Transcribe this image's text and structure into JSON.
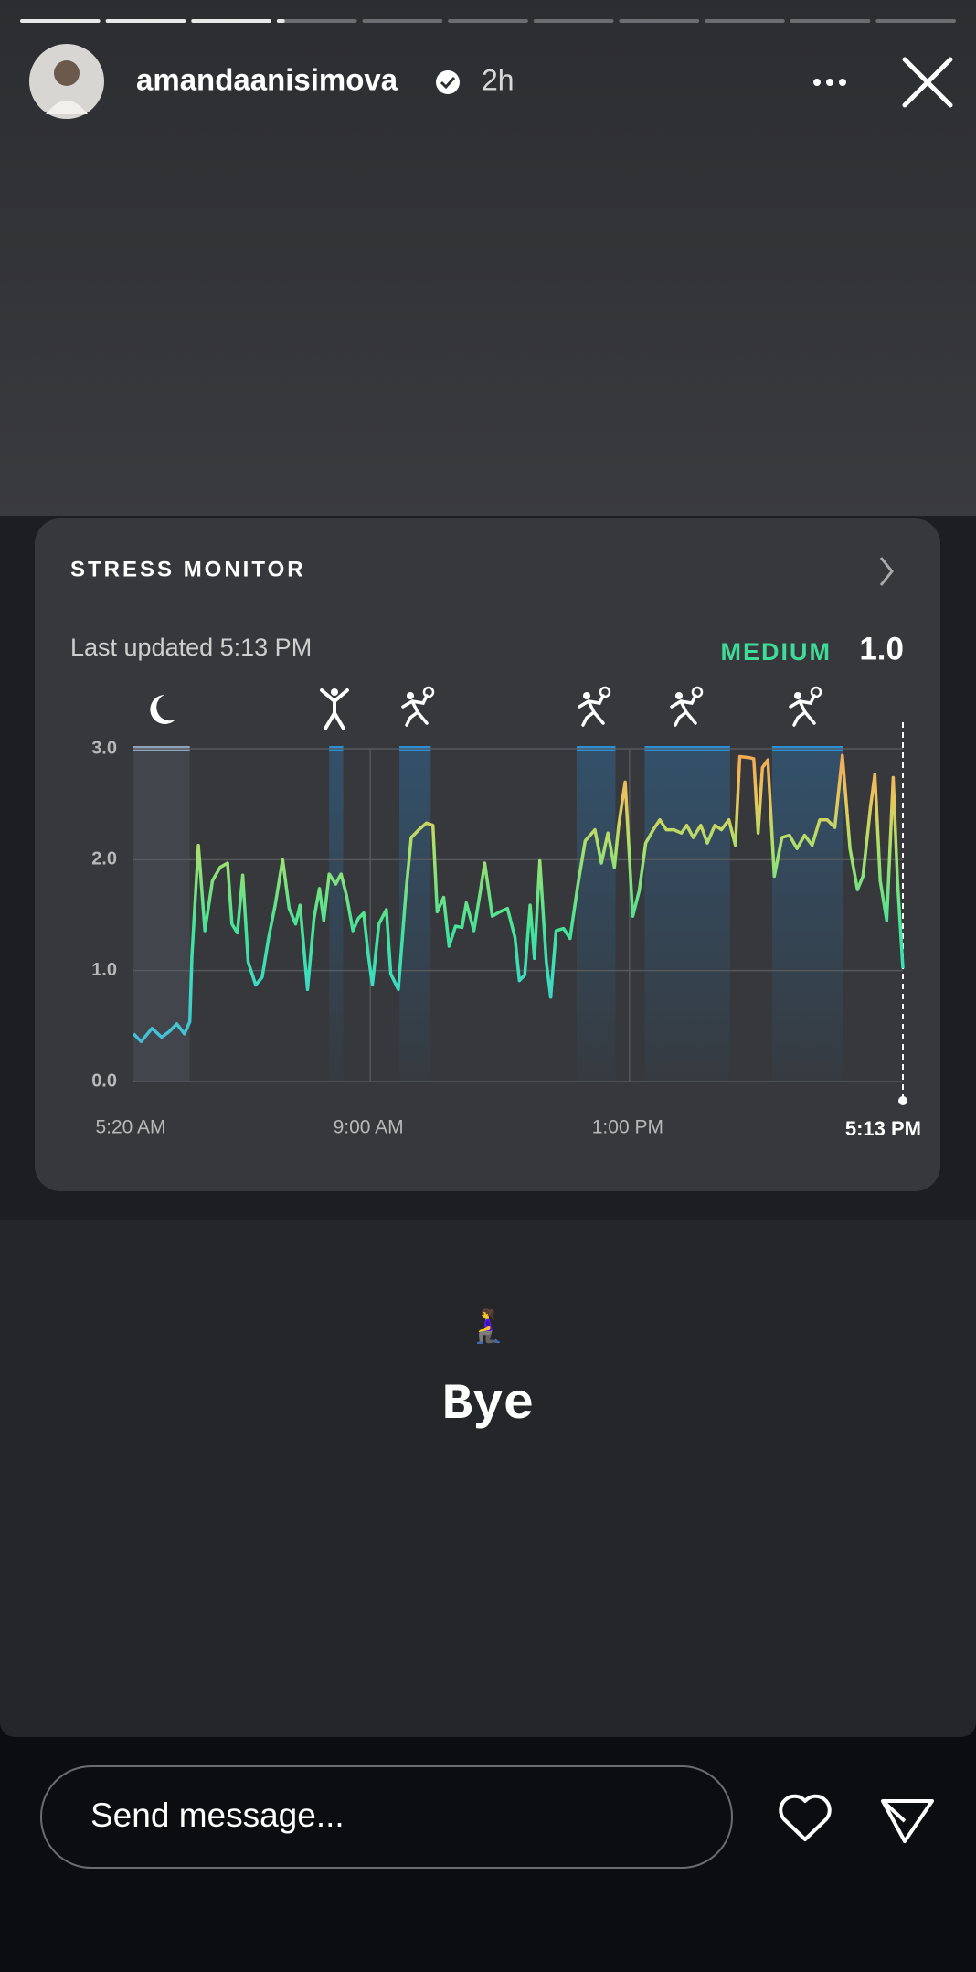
{
  "header": {
    "username": "amandaanisimova",
    "time": "2h"
  },
  "card": {
    "title": "STRESS MONITOR",
    "last_updated": "Last updated 5:13 PM",
    "level": "MEDIUM",
    "score": "1.0"
  },
  "chart_data": {
    "type": "line",
    "x": [
      321,
      328,
      338,
      347,
      354,
      361,
      368,
      373,
      375,
      381,
      387,
      394,
      401,
      408,
      412,
      417,
      422,
      427,
      434,
      440,
      446,
      452,
      459,
      465,
      471,
      475,
      482,
      488,
      493,
      497,
      502,
      508,
      513,
      518,
      524,
      529,
      534,
      538,
      542,
      548,
      555,
      559,
      566,
      573,
      578,
      585,
      592,
      598,
      602,
      608,
      613,
      619,
      625,
      629,
      636,
      642,
      646,
      653,
      660,
      667,
      674,
      678,
      683,
      688,
      692,
      697,
      703,
      707,
      712,
      719,
      725,
      732,
      739,
      748,
      754,
      760,
      766,
      770,
      776,
      783,
      789,
      795,
      802,
      808,
      814,
      821,
      828,
      833,
      839,
      846,
      852,
      859,
      865,
      872,
      878,
      882,
      891,
      895,
      899,
      903,
      908,
      914,
      921,
      928,
      935,
      942,
      949,
      956,
      963,
      970,
      977,
      984,
      991,
      996,
      1003,
      1007,
      1012,
      1018,
      1024,
      1028,
      1033
    ],
    "values": [
      0.43,
      0.36,
      0.48,
      0.4,
      0.45,
      0.52,
      0.43,
      0.54,
      1.13,
      2.13,
      1.36,
      1.81,
      1.93,
      1.97,
      1.42,
      1.34,
      1.86,
      1.08,
      0.87,
      0.94,
      1.3,
      1.59,
      2.0,
      1.56,
      1.42,
      1.59,
      0.83,
      1.47,
      1.74,
      1.45,
      1.87,
      1.78,
      1.87,
      1.68,
      1.36,
      1.47,
      1.52,
      1.16,
      0.87,
      1.42,
      1.55,
      0.97,
      0.83,
      1.7,
      2.2,
      2.27,
      2.33,
      2.31,
      1.53,
      1.66,
      1.22,
      1.4,
      1.39,
      1.61,
      1.36,
      1.72,
      1.97,
      1.49,
      1.53,
      1.56,
      1.3,
      0.91,
      0.96,
      1.59,
      1.11,
      1.99,
      1.08,
      0.76,
      1.36,
      1.38,
      1.29,
      1.76,
      2.17,
      2.27,
      1.97,
      2.24,
      1.93,
      2.31,
      2.7,
      1.49,
      1.72,
      2.15,
      2.27,
      2.36,
      2.27,
      2.27,
      2.24,
      2.31,
      2.2,
      2.31,
      2.15,
      2.31,
      2.27,
      2.36,
      2.13,
      2.93,
      2.92,
      2.91,
      2.24,
      2.83,
      2.9,
      1.85,
      2.2,
      2.22,
      2.1,
      2.22,
      2.13,
      2.36,
      2.36,
      2.29,
      2.94,
      2.1,
      1.73,
      1.85,
      2.47,
      2.77,
      1.81,
      1.45,
      2.74,
      1.81,
      1.02
    ],
    "activities": [
      [
        320,
        373
      ],
      [
        502,
        515
      ],
      [
        567,
        596
      ],
      [
        731,
        767
      ],
      [
        794,
        873
      ],
      [
        912,
        978
      ]
    ],
    "xlim": [
      320,
      1033
    ],
    "xticks": [
      {
        "value": 320,
        "label": "5:20 AM"
      },
      {
        "value": 540,
        "label": "9:00 AM"
      },
      {
        "value": 780,
        "label": "1:00 PM"
      },
      {
        "value": 1033,
        "label": "5:13 PM"
      }
    ],
    "ylim": [
      0,
      3
    ],
    "yticks": [
      {
        "value": 0,
        "label": "0.0"
      },
      {
        "value": 1,
        "label": "1.0"
      },
      {
        "value": 2,
        "label": "2.0"
      },
      {
        "value": 3,
        "label": "3.0"
      }
    ],
    "grid": true
  },
  "caption": {
    "emoji": "🧎‍♀️",
    "text": "Bye"
  },
  "footer": {
    "placeholder": "Send message..."
  }
}
